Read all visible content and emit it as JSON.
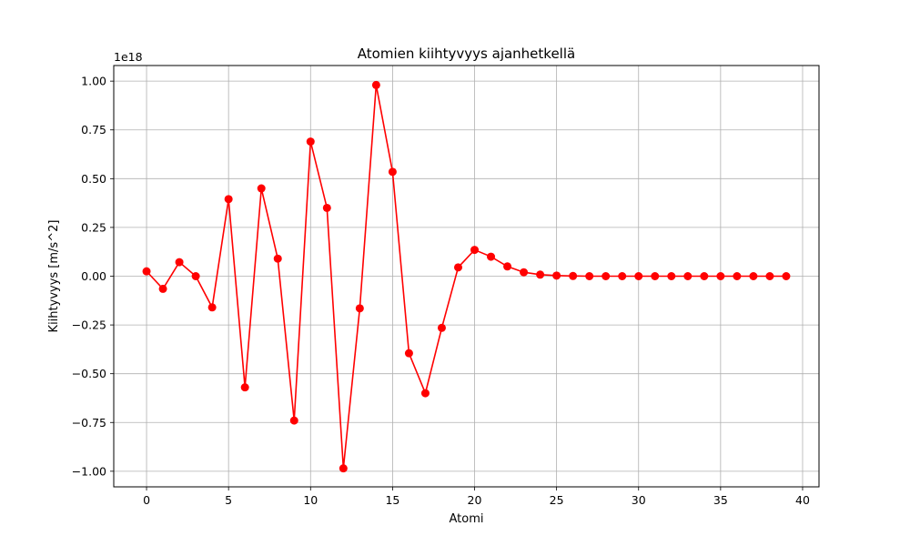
{
  "chart_data": {
    "type": "line",
    "title": "Atomien kiihtyvyys ajanhetkellä",
    "xlabel": "Atomi",
    "ylabel": "Kiihtyvyys [m/s^2]",
    "y_offset_label": "1e18",
    "y_scale": 1e+18,
    "xlim": [
      -2,
      41
    ],
    "ylim": [
      -1.08,
      1.08
    ],
    "x_ticks": [
      0,
      5,
      10,
      15,
      20,
      25,
      30,
      35,
      40
    ],
    "x_tick_labels": [
      "0",
      "5",
      "10",
      "15",
      "20",
      "25",
      "30",
      "35",
      "40"
    ],
    "y_ticks": [
      -1.0,
      -0.75,
      -0.5,
      -0.25,
      0.0,
      0.25,
      0.5,
      0.75,
      1.0
    ],
    "y_tick_labels": [
      "−1.00",
      "−0.75",
      "−0.50",
      "−0.25",
      "0.00",
      "0.25",
      "0.50",
      "0.75",
      "1.00"
    ],
    "grid": true,
    "color": "#ff0000",
    "marker": "circle",
    "series": [
      {
        "x": [
          0,
          1,
          2,
          3,
          4,
          5,
          6,
          7,
          8,
          9,
          10,
          11,
          12,
          13,
          14,
          15,
          16,
          17,
          18,
          19,
          20,
          21,
          22,
          23,
          24,
          25,
          26,
          27,
          28,
          29,
          30,
          31,
          32,
          33,
          34,
          35,
          36,
          37,
          38,
          39
        ],
        "values": [
          0.025,
          -0.065,
          0.072,
          0.0,
          -0.16,
          0.395,
          -0.57,
          0.45,
          0.09,
          -0.74,
          0.69,
          0.35,
          -0.985,
          -0.165,
          0.98,
          0.535,
          -0.395,
          -0.6,
          -0.265,
          0.045,
          0.135,
          0.1,
          0.05,
          0.02,
          0.008,
          0.003,
          0.001,
          0.0,
          0.0,
          0.0,
          0.0,
          0.0,
          0.0,
          0.0,
          0.0,
          0.0,
          0.0,
          0.0,
          0.0,
          0.0
        ]
      }
    ]
  }
}
